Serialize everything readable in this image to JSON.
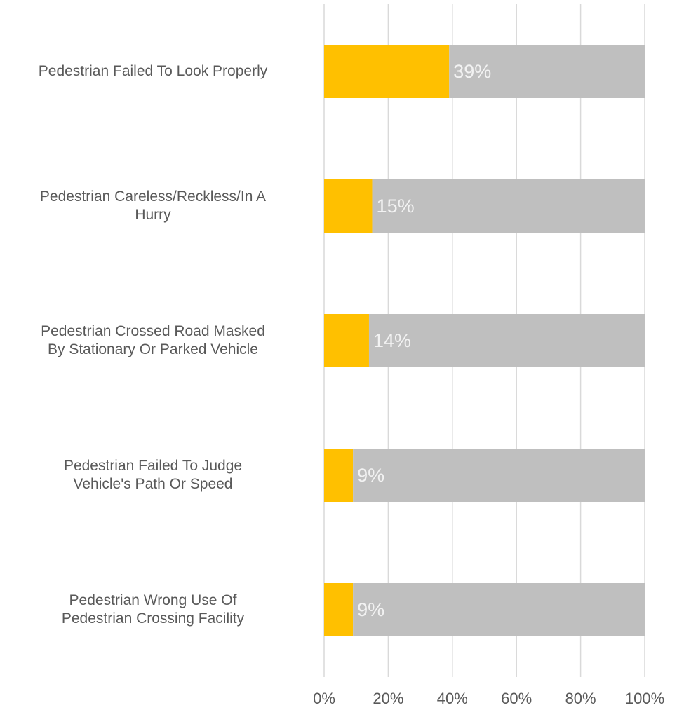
{
  "chart_data": {
    "type": "stacked_barh",
    "categories": [
      "Pedestrian Failed To Look Properly",
      "Pedestrian Careless/Reckless/In A\nHurry",
      "Pedestrian Crossed Road Masked\nBy Stationary Or Parked Vehicle",
      "Pedestrian Failed To Judge\nVehicle's Path Or Speed",
      "Pedestrian Wrong Use Of\nPedestrian Crossing Facility"
    ],
    "series": [
      {
        "color": "#ffc000",
        "values": [
          39,
          15,
          14,
          9,
          9
        ],
        "value_labels": [
          "39%",
          "15%",
          "14%",
          "9%",
          "9%"
        ]
      },
      {
        "color": "#bfbfbf",
        "values": [
          61,
          85,
          86,
          91,
          91
        ]
      }
    ],
    "xlim": [
      0,
      100
    ],
    "xticks": [
      {
        "value": 0,
        "label": "0%"
      },
      {
        "value": 20,
        "label": "20%"
      },
      {
        "value": 40,
        "label": "40%"
      },
      {
        "value": 60,
        "label": "60%"
      },
      {
        "value": 80,
        "label": "80%"
      },
      {
        "value": 100,
        "label": "100%"
      }
    ],
    "grid": true
  }
}
